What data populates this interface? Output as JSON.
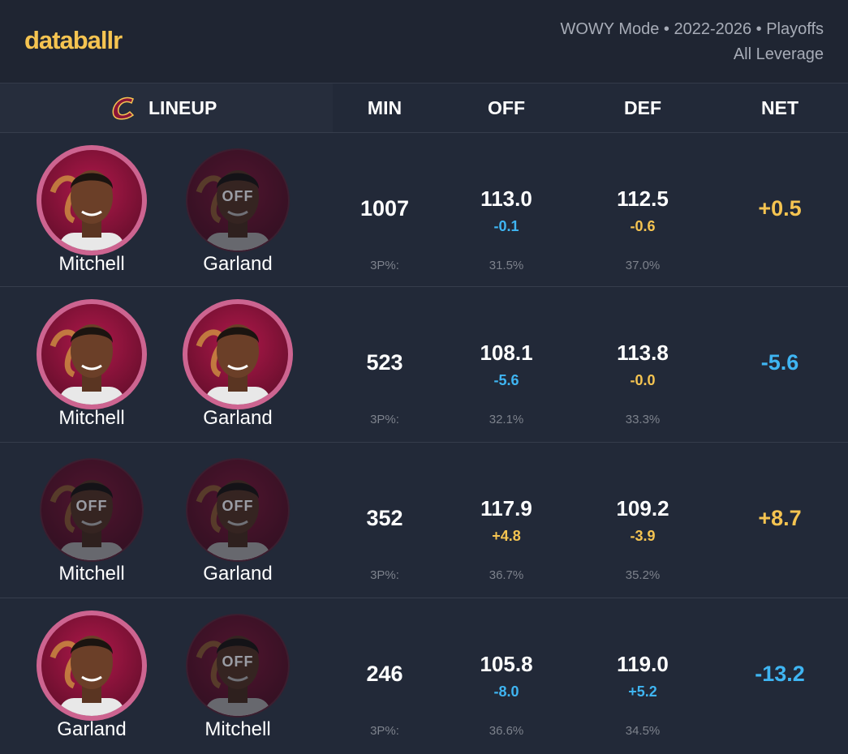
{
  "header": {
    "logo": "databallr",
    "filters": [
      "WOWY Mode • 2022-2026 • Playoffs",
      "All Leverage"
    ]
  },
  "table": {
    "columns": [
      "LINEUP",
      "MIN",
      "OFF",
      "DEF",
      "NET"
    ],
    "rows": [
      {
        "players": [
          {
            "name": "Mitchell",
            "on": true
          },
          {
            "name": "Garland",
            "on": false,
            "badge": "OFF"
          }
        ],
        "min": "1007",
        "off": "113.0",
        "off_diff": {
          "text": "-0.1",
          "color": "#3fb5f2"
        },
        "def": "112.5",
        "def_diff": {
          "text": "-0.6",
          "color": "#f5c451"
        },
        "net": {
          "text": "+0.5",
          "color": "#f5c451"
        },
        "three_label": "3P%:",
        "off_3p": "31.5%",
        "def_3p": "37.0%"
      },
      {
        "players": [
          {
            "name": "Mitchell",
            "on": true
          },
          {
            "name": "Garland",
            "on": true
          }
        ],
        "min": "523",
        "off": "108.1",
        "off_diff": {
          "text": "-5.6",
          "color": "#3fb5f2"
        },
        "def": "113.8",
        "def_diff": {
          "text": "-0.0",
          "color": "#f5c451"
        },
        "net": {
          "text": "-5.6",
          "color": "#3fb5f2"
        },
        "three_label": "3P%:",
        "off_3p": "32.1%",
        "def_3p": "33.3%"
      },
      {
        "players": [
          {
            "name": "Mitchell",
            "on": false,
            "badge": "OFF"
          },
          {
            "name": "Garland",
            "on": false,
            "badge": "OFF"
          }
        ],
        "min": "352",
        "off": "117.9",
        "off_diff": {
          "text": "+4.8",
          "color": "#f5c451"
        },
        "def": "109.2",
        "def_diff": {
          "text": "-3.9",
          "color": "#f5c451"
        },
        "net": {
          "text": "+8.7",
          "color": "#f5c451"
        },
        "three_label": "3P%:",
        "off_3p": "36.7%",
        "def_3p": "35.2%"
      },
      {
        "players": [
          {
            "name": "Garland",
            "on": true
          },
          {
            "name": "Mitchell",
            "on": false,
            "badge": "OFF"
          }
        ],
        "min": "246",
        "off": "105.8",
        "off_diff": {
          "text": "-8.0",
          "color": "#3fb5f2"
        },
        "def": "119.0",
        "def_diff": {
          "text": "+5.2",
          "color": "#3fb5f2"
        },
        "net": {
          "text": "-13.2",
          "color": "#3fb5f2"
        },
        "three_label": "3P%:",
        "off_3p": "36.6%",
        "def_3p": "34.5%"
      }
    ]
  }
}
